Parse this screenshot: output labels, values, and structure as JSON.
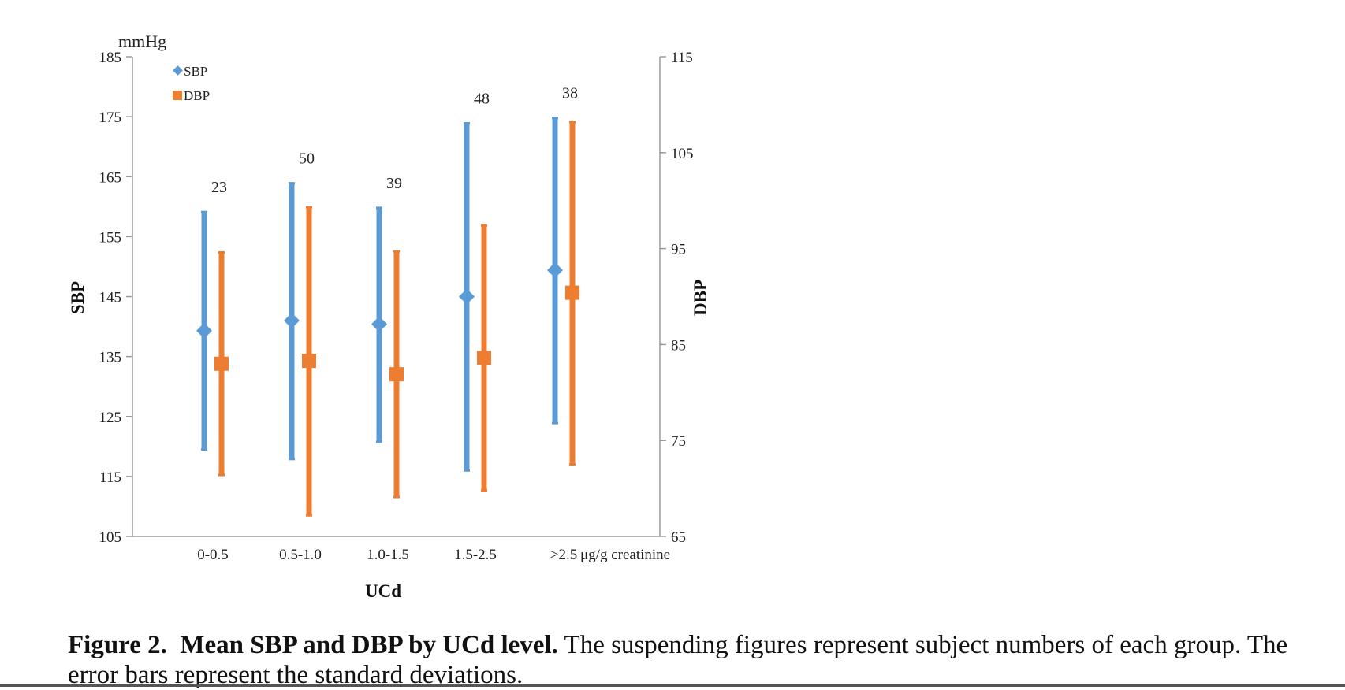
{
  "chart_data": {
    "type": "scatter",
    "categories": [
      "0-0.5",
      "0.5-1.0",
      "1.0-1.5",
      "1.5-2.5",
      ">2.5"
    ],
    "x_unit": "μg/g creatinine",
    "xlabel": "UCd",
    "y_unit": "mmHg",
    "ylabel_left": "SBP",
    "ylabel_right": "DBP",
    "ylim_left": [
      105,
      185
    ],
    "ylim_right": [
      65,
      115
    ],
    "yticks_left": [
      105,
      115,
      125,
      135,
      145,
      155,
      165,
      175,
      185
    ],
    "yticks_right": [
      65,
      75,
      85,
      95,
      105,
      115
    ],
    "legend_position": "top-left",
    "grid": false,
    "counts": [
      "23",
      "50",
      "39",
      "48",
      "38"
    ],
    "series": [
      {
        "name": "SBP",
        "axis": "left",
        "marker": "diamond",
        "color": "#5B9BD5",
        "mean": [
          139.3,
          141.0,
          140.4,
          145.0,
          149.4
        ],
        "sd_low": [
          119.5,
          117.9,
          120.8,
          116.0,
          123.9
        ],
        "sd_high": [
          159.1,
          163.9,
          159.8,
          173.9,
          174.8
        ]
      },
      {
        "name": "DBP",
        "axis": "right",
        "marker": "square",
        "color": "#ED7D31",
        "mean": [
          83.0,
          83.3,
          81.9,
          83.6,
          90.4
        ],
        "sd_low": [
          71.4,
          67.2,
          69.1,
          69.8,
          72.5
        ],
        "sd_high": [
          94.6,
          99.3,
          94.7,
          97.4,
          108.2
        ]
      }
    ]
  },
  "caption": {
    "label": "Figure 2.",
    "title": "Mean SBP and DBP by UCd level.",
    "text": "The suspending figures represent subject numbers of each group. The error bars represent the standard deviations."
  }
}
